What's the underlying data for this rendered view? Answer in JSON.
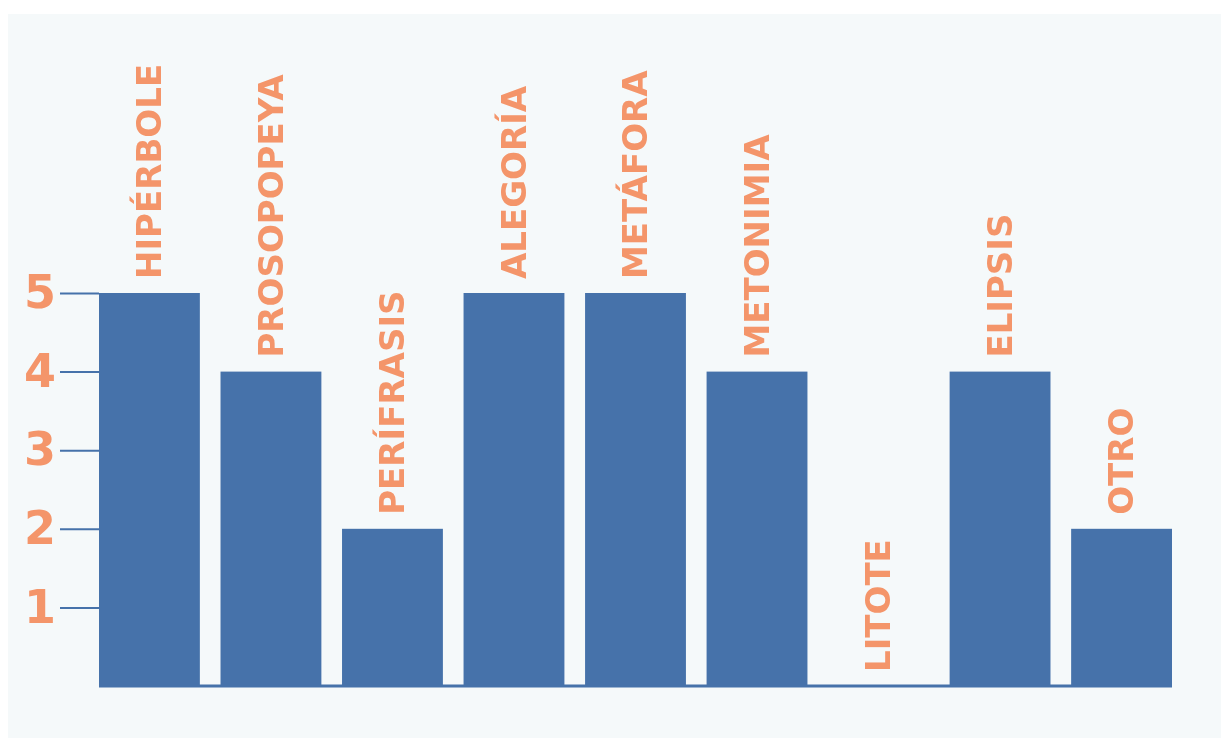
{
  "chart_data": {
    "type": "bar",
    "categories": [
      "HIPÉRBOLE",
      "PROSOPOPEYA",
      "PERÍFRASIS",
      "ALEGORÍA",
      "METÁFORA",
      "METONIMIA",
      "LITOTE",
      "ELIPSIS",
      "OTRO"
    ],
    "values": [
      5,
      4,
      2,
      5,
      5,
      4,
      0,
      4,
      2
    ],
    "color": "#4672aa",
    "ylim": [
      0,
      5
    ],
    "yticks": [
      1,
      2,
      3,
      4,
      5
    ],
    "grid": false
  }
}
